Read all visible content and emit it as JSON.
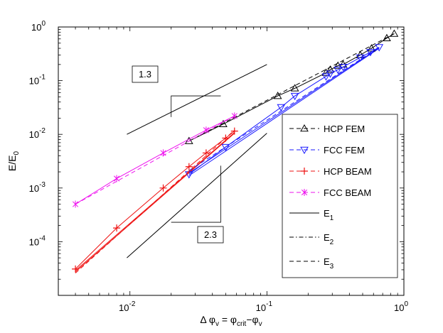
{
  "chart_data": {
    "type": "line",
    "scale": "log-log",
    "xlabel_parts": {
      "prefix": "Δ φ",
      "prefix_sub": "v",
      "mid": " = φ",
      "mid_sub": "crit",
      "dash": "−φ",
      "end_sub": "v"
    },
    "ylabel_parts": {
      "main": "E/E",
      "sub": "0"
    },
    "xlim": [
      0.003,
      1
    ],
    "ylim": [
      1e-05,
      1
    ],
    "x_ticks": [
      {
        "value": 0.01,
        "base": "10",
        "exp": "-2"
      },
      {
        "value": 0.1,
        "base": "10",
        "exp": "-1"
      },
      {
        "value": 1,
        "base": "10",
        "exp": "0"
      }
    ],
    "y_ticks": [
      {
        "value": 0.0001,
        "base": "10",
        "exp": "-4"
      },
      {
        "value": 0.001,
        "base": "10",
        "exp": "-3"
      },
      {
        "value": 0.01,
        "base": "10",
        "exp": "-2"
      },
      {
        "value": 0.1,
        "base": "10",
        "exp": "-1"
      },
      {
        "value": 1,
        "base": "10",
        "exp": "0"
      }
    ],
    "series": [
      {
        "name": "HCP FEM",
        "color": "#000000",
        "marker": "triangle-up",
        "dash": "dashed",
        "points": [
          [
            0.027,
            0.0075
          ],
          [
            0.048,
            0.0155
          ],
          [
            0.12,
            0.052
          ],
          [
            0.16,
            0.072
          ],
          [
            0.27,
            0.14
          ],
          [
            0.29,
            0.16
          ],
          [
            0.33,
            0.19
          ],
          [
            0.36,
            0.2
          ],
          [
            0.48,
            0.3
          ],
          [
            0.58,
            0.4
          ],
          [
            0.75,
            0.62
          ],
          [
            0.85,
            0.75
          ]
        ],
        "fit": [
          [
            0.027,
            0.0075
          ],
          [
            0.85,
            0.75
          ]
        ]
      },
      {
        "name": "FCC FEM",
        "color": "#1a1aff",
        "marker": "triangle-down",
        "dash": "dashed",
        "points": [
          [
            0.027,
            0.0018
          ],
          [
            0.05,
            0.0058
          ],
          [
            0.127,
            0.032
          ],
          [
            0.16,
            0.052
          ],
          [
            0.27,
            0.12
          ],
          [
            0.29,
            0.135
          ],
          [
            0.33,
            0.16
          ],
          [
            0.36,
            0.18
          ],
          [
            0.48,
            0.27
          ],
          [
            0.57,
            0.34
          ],
          [
            0.66,
            0.42
          ]
        ],
        "fit": [
          [
            0.027,
            0.0021
          ],
          [
            0.66,
            0.42
          ]
        ]
      },
      {
        "name": "HCP BEAM",
        "color": "#ee1111",
        "marker": "plus",
        "dash": "dashed",
        "points": [
          [
            0.004,
            3.1e-05
          ],
          [
            0.008,
            0.00018
          ],
          [
            0.0175,
            0.001
          ],
          [
            0.027,
            0.0025
          ],
          [
            0.036,
            0.0045
          ],
          [
            0.05,
            0.0085
          ],
          [
            0.058,
            0.0115
          ]
        ],
        "fit": [
          [
            0.004,
            2.6e-05
          ],
          [
            0.058,
            0.012
          ]
        ]
      },
      {
        "name": "FCC BEAM",
        "color": "#ee11ee",
        "marker": "star",
        "dash": "dashed",
        "points": [
          [
            0.004,
            0.0005
          ],
          [
            0.008,
            0.0015
          ],
          [
            0.0175,
            0.0045
          ],
          [
            0.036,
            0.012
          ],
          [
            0.058,
            0.022
          ]
        ],
        "fit": [
          [
            0.004,
            0.0005
          ],
          [
            0.058,
            0.022
          ]
        ]
      }
    ],
    "solid_fits": [
      {
        "color": "#ee1111",
        "points": [
          [
            0.004,
            2.75e-05
          ],
          [
            0.058,
            0.0105
          ]
        ]
      },
      {
        "color": "#ee1111",
        "points": [
          [
            0.004,
            2.9e-05
          ],
          [
            0.058,
            0.0108
          ]
        ]
      },
      {
        "color": "#1a1aff",
        "points": [
          [
            0.027,
            0.0017
          ],
          [
            0.66,
            0.4
          ]
        ]
      },
      {
        "color": "#1a1aff",
        "points": [
          [
            0.027,
            0.0019
          ],
          [
            0.66,
            0.41
          ]
        ]
      }
    ],
    "guide_lines": [
      {
        "label": "1.3",
        "points": [
          [
            0.0095,
            0.01
          ],
          [
            0.1,
            0.2
          ]
        ]
      },
      {
        "label": "2.3",
        "points": [
          [
            0.0095,
            5e-05
          ],
          [
            0.1,
            0.0105
          ]
        ]
      }
    ],
    "slope_triangles": [
      {
        "label": "1.3",
        "corner_x": 0.02,
        "corner_y_top": 0.052,
        "corner_y_bottom": 0.021,
        "x_right": 0.046
      },
      {
        "label": "2.3",
        "corner_x": 0.02,
        "x_right": 0.046,
        "y_top": 0.0026,
        "y_bottom": 0.00023
      }
    ],
    "legend": {
      "position": "bottom-right",
      "entries": [
        {
          "label": "HCP FEM",
          "color": "#000000",
          "marker": "triangle-up",
          "line": "dashed"
        },
        {
          "label": "FCC FEM",
          "color": "#1a1aff",
          "marker": "triangle-down",
          "line": "dashed"
        },
        {
          "label": "HCP BEAM",
          "color": "#ee1111",
          "marker": "plus",
          "line": "dashed"
        },
        {
          "label": "FCC BEAM",
          "color": "#ee11ee",
          "marker": "star",
          "line": "dashed"
        },
        {
          "label_main": "E",
          "label_sub": "1",
          "color": "#000000",
          "marker": "none",
          "line": "solid"
        },
        {
          "label_main": "E",
          "label_sub": "2",
          "color": "#000000",
          "marker": "none",
          "line": "dashdot"
        },
        {
          "label_main": "E",
          "label_sub": "3",
          "color": "#000000",
          "marker": "none",
          "line": "dashed"
        }
      ]
    }
  }
}
